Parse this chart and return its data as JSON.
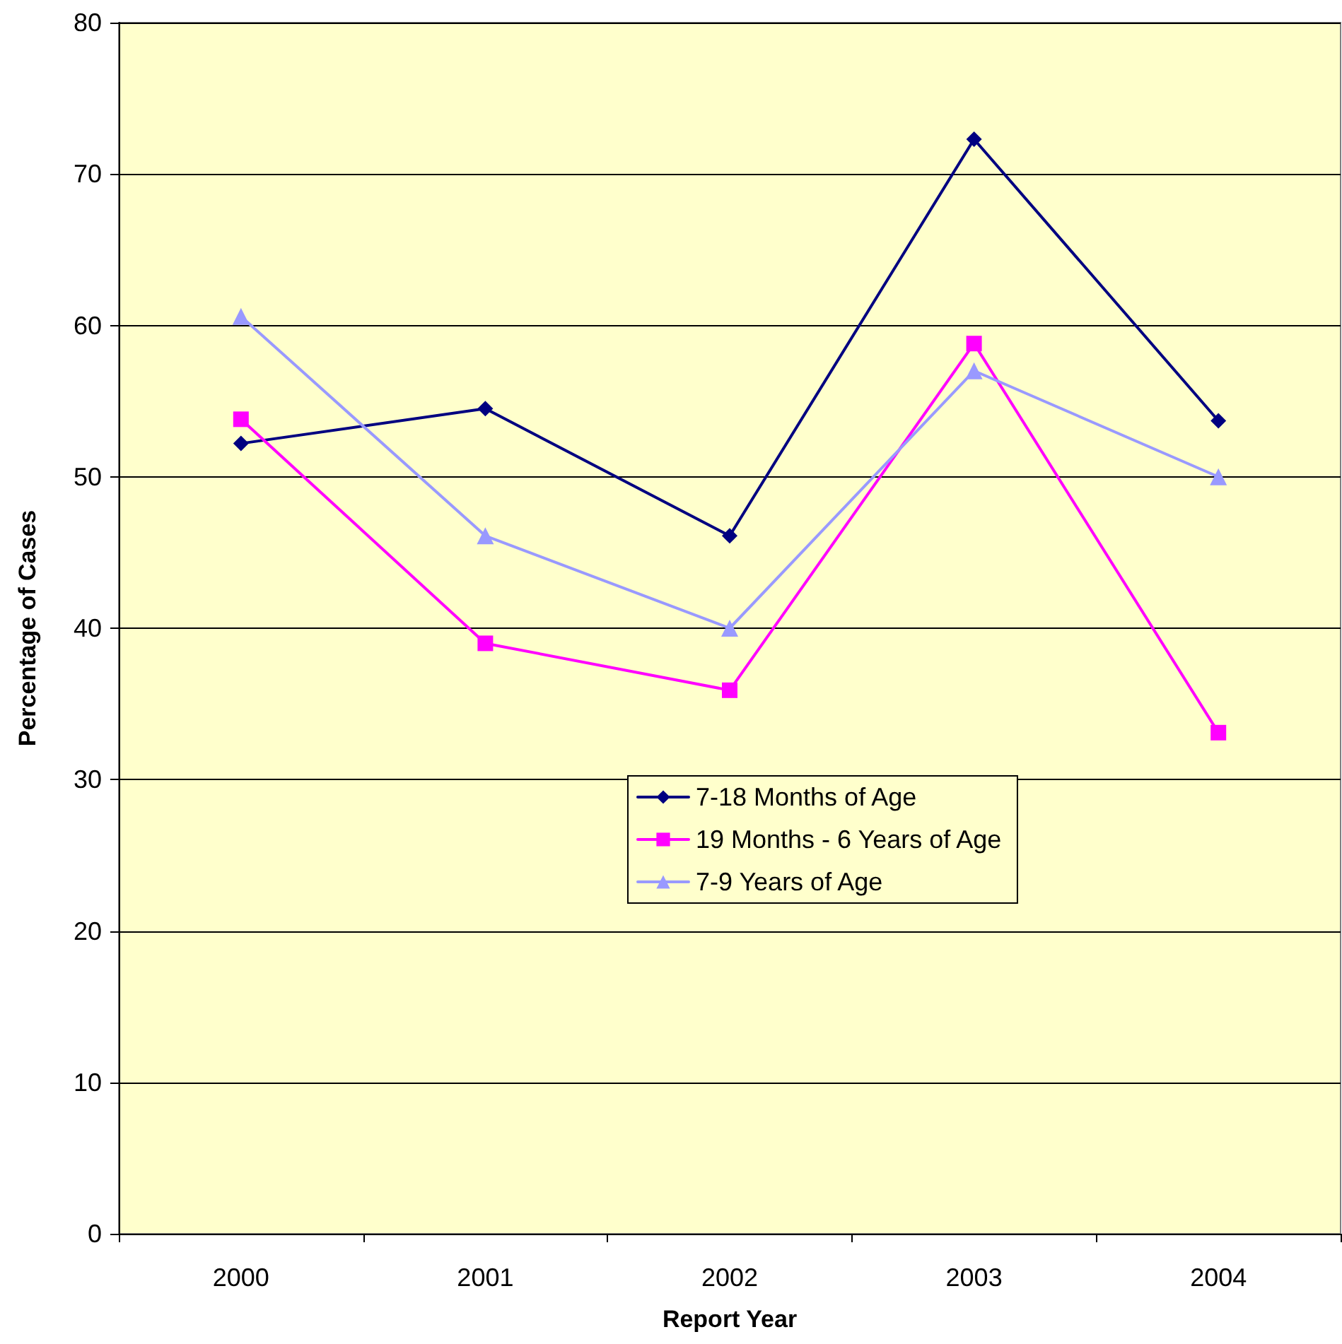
{
  "chart_data": {
    "type": "line",
    "xlabel": "Report Year",
    "ylabel": "Percentage of Cases",
    "categories": [
      "2000",
      "2001",
      "2002",
      "2003",
      "2004"
    ],
    "series": [
      {
        "name": "7-18 Months of Age",
        "color": "#000080",
        "marker": "diamond",
        "values": [
          52.2,
          54.5,
          46.1,
          72.3,
          53.7
        ]
      },
      {
        "name": "19 Months - 6 Years of Age",
        "color": "#ff00ff",
        "marker": "square",
        "values": [
          53.8,
          39.0,
          35.9,
          58.8,
          33.1
        ]
      },
      {
        "name": "7-9 Years of Age",
        "color": "#9999ff",
        "marker": "triangle",
        "values": [
          60.6,
          46.1,
          40.0,
          57.0,
          50.0
        ]
      }
    ],
    "ylim": [
      0,
      80
    ],
    "yticks": [
      0,
      10,
      20,
      30,
      40,
      50,
      60,
      70,
      80
    ],
    "grid": "y",
    "legend": "center",
    "line_style": "solid"
  }
}
